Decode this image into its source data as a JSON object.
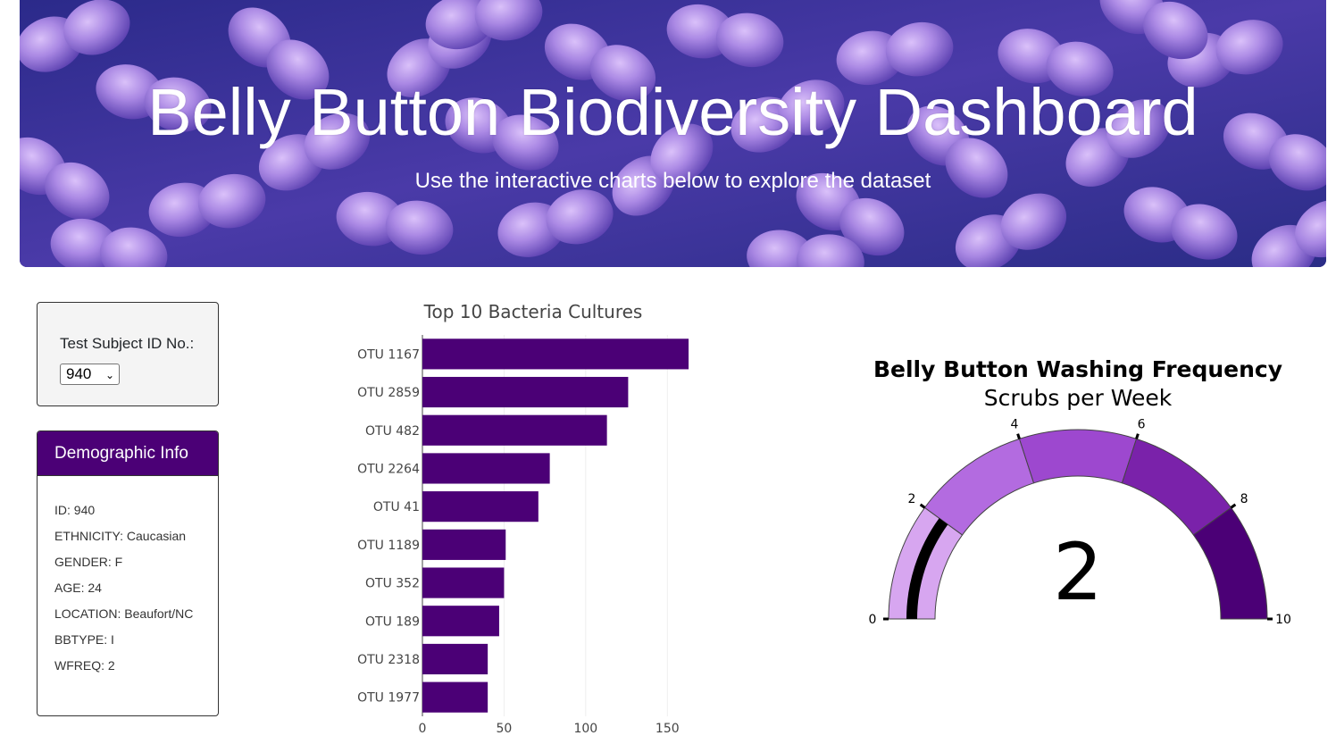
{
  "header": {
    "title": "Belly Button Biodiversity Dashboard",
    "subtitle": "Use the interactive charts below to explore the dataset"
  },
  "selector": {
    "label": "Test Subject ID No.:",
    "selected": "940"
  },
  "demographic": {
    "heading": "Demographic Info",
    "rows": [
      "ID: 940",
      "ETHNICITY: Caucasian",
      "GENDER: F",
      "AGE: 24",
      "LOCATION: Beaufort/NC",
      "BBTYPE: I",
      "WFREQ: 2"
    ]
  },
  "colors": {
    "accent": "#4b0076",
    "gauge_steps": [
      "#d7a6f0",
      "#b36be0",
      "#9d48cf",
      "#7a22aa",
      "#4b0076"
    ],
    "gauge_bar": "#000000"
  },
  "chart_data": [
    {
      "type": "bar",
      "orientation": "horizontal",
      "title": "Top 10 Bacteria Cultures",
      "categories": [
        "OTU 1167",
        "OTU 2859",
        "OTU 482",
        "OTU 2264",
        "OTU 41",
        "OTU 1189",
        "OTU 352",
        "OTU 189",
        "OTU 2318",
        "OTU 1977"
      ],
      "values": [
        163,
        126,
        113,
        78,
        71,
        51,
        50,
        47,
        40,
        40
      ],
      "xlim": [
        0,
        175
      ],
      "xticks": [
        "0",
        "50",
        "100",
        "150"
      ],
      "grid": true
    },
    {
      "type": "gauge",
      "title": "Belly Button Washing Frequency",
      "subtitle": "Scrubs per Week",
      "value": 2,
      "range": [
        0,
        10
      ],
      "ticks": [
        "0",
        "2",
        "4",
        "6",
        "8",
        "10"
      ],
      "steps": [
        [
          0,
          2
        ],
        [
          2,
          4
        ],
        [
          4,
          6
        ],
        [
          6,
          8
        ],
        [
          8,
          10
        ]
      ]
    }
  ]
}
